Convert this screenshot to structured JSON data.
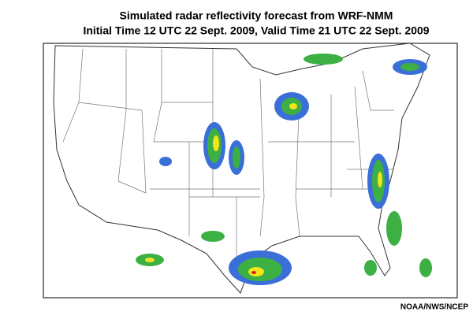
{
  "header": {
    "title": "Simulated radar reflectivity forecast from WRF-NMM",
    "subtitle": "Initial Time 12 UTC 22 Sept. 2009, Valid Time 21 UTC 22 Sept. 2009"
  },
  "credit": "NOAA/NWS/NCEP"
}
